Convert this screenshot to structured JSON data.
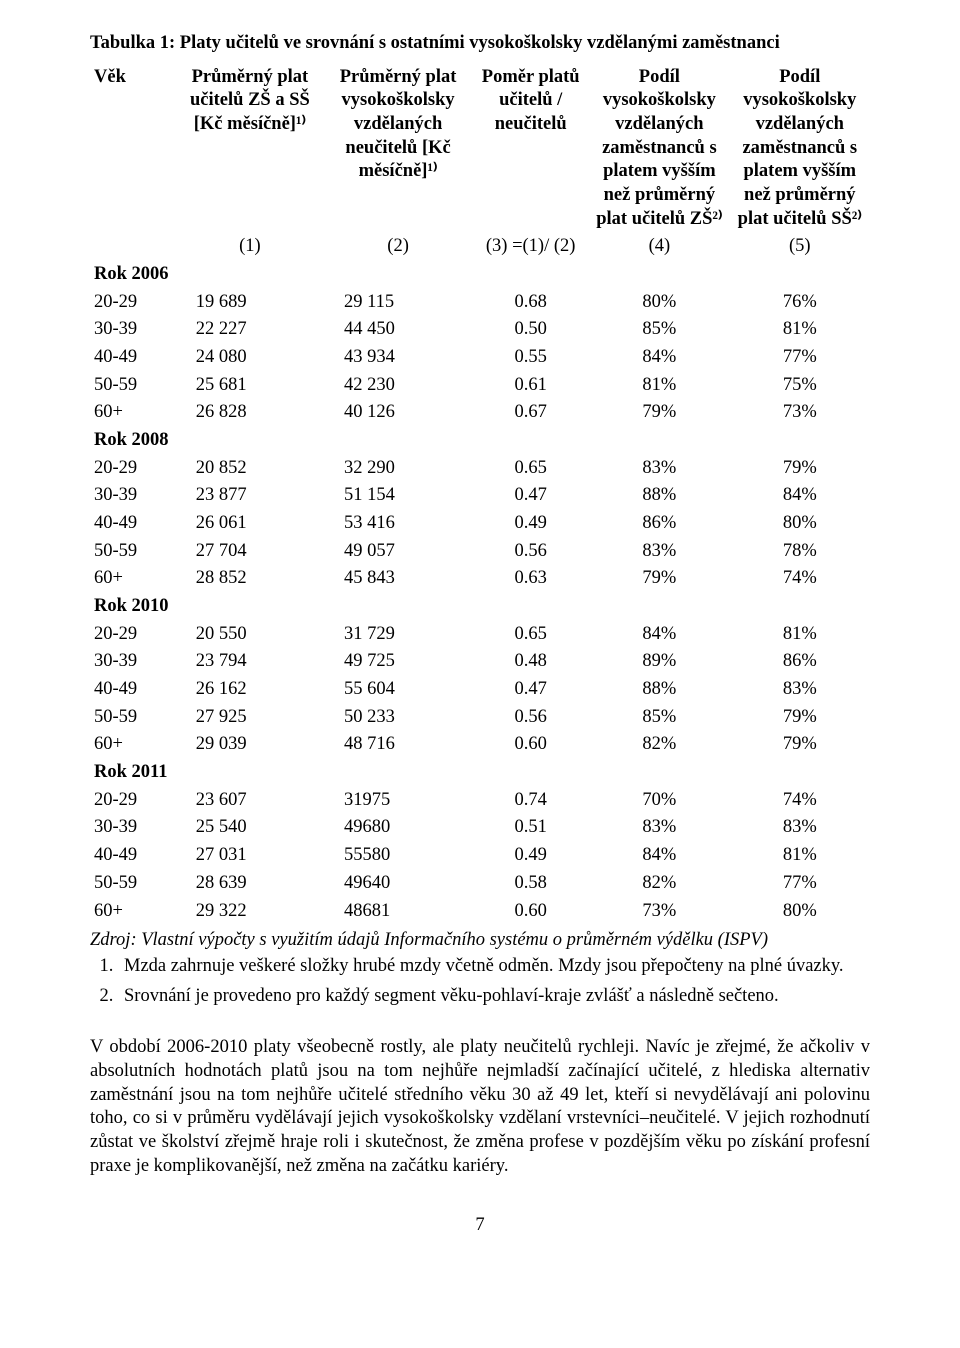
{
  "title": "Tabulka 1: Platy učitelů ve srovnání s ostatními vysokoškolsky vzdělanými zaměstnanci",
  "colors": {
    "text": "#000000",
    "background": "#ffffff"
  },
  "typography": {
    "body_font": "Georgia, serif",
    "body_size_pt": 14,
    "title_weight": "bold"
  },
  "columns": [
    "Věk",
    "Průměrný plat učitelů ZŠ a SŠ [Kč měsíčně]¹⁾",
    "Průměrný plat vysokoškolsky vzdělaných neučitelů [Kč měsíčně]¹⁾",
    "Poměr platů učitelů / neučitelů",
    "Podíl vysokoškolsky vzdělaných zaměstnanců s platem vyšším než průměrný plat učitelů ZŠ²⁾",
    "Podíl vysokoškolsky vzdělaných zaměstnanců s platem vyšším než průměrný plat učitelů SŠ²⁾"
  ],
  "col_numbers": [
    "",
    "(1)",
    "(2)",
    "(3) =(1)/ (2)",
    "(4)",
    "(5)"
  ],
  "sections": [
    {
      "label": "Rok 2006",
      "rows": [
        {
          "age": "20-29",
          "v1": "19 689",
          "v2": "29 115",
          "v3": "0.68",
          "v4": "80%",
          "v5": "76%"
        },
        {
          "age": "30-39",
          "v1": "22 227",
          "v2": "44 450",
          "v3": "0.50",
          "v4": "85%",
          "v5": "81%"
        },
        {
          "age": "40-49",
          "v1": "24 080",
          "v2": "43 934",
          "v3": "0.55",
          "v4": "84%",
          "v5": "77%"
        },
        {
          "age": "50-59",
          "v1": "25 681",
          "v2": "42 230",
          "v3": "0.61",
          "v4": "81%",
          "v5": "75%"
        },
        {
          "age": "60+",
          "v1": "26 828",
          "v2": "40 126",
          "v3": "0.67",
          "v4": "79%",
          "v5": "73%"
        }
      ]
    },
    {
      "label": "Rok 2008",
      "rows": [
        {
          "age": "20-29",
          "v1": "20 852",
          "v2": "32 290",
          "v3": "0.65",
          "v4": "83%",
          "v5": "79%"
        },
        {
          "age": "30-39",
          "v1": "23 877",
          "v2": "51 154",
          "v3": "0.47",
          "v4": "88%",
          "v5": "84%"
        },
        {
          "age": "40-49",
          "v1": "26 061",
          "v2": "53 416",
          "v3": "0.49",
          "v4": "86%",
          "v5": "80%"
        },
        {
          "age": "50-59",
          "v1": "27 704",
          "v2": "49 057",
          "v3": "0.56",
          "v4": "83%",
          "v5": "78%"
        },
        {
          "age": "60+",
          "v1": "28 852",
          "v2": "45 843",
          "v3": "0.63",
          "v4": "79%",
          "v5": "74%"
        }
      ]
    },
    {
      "label": "Rok 2010",
      "rows": [
        {
          "age": "20-29",
          "v1": "20 550",
          "v2": "31 729",
          "v3": "0.65",
          "v4": "84%",
          "v5": "81%"
        },
        {
          "age": "30-39",
          "v1": "23 794",
          "v2": "49 725",
          "v3": "0.48",
          "v4": "89%",
          "v5": "86%"
        },
        {
          "age": "40-49",
          "v1": "26 162",
          "v2": "55 604",
          "v3": "0.47",
          "v4": "88%",
          "v5": "83%"
        },
        {
          "age": "50-59",
          "v1": "27 925",
          "v2": "50 233",
          "v3": "0.56",
          "v4": "85%",
          "v5": "79%"
        },
        {
          "age": "60+",
          "v1": "29 039",
          "v2": "48 716",
          "v3": "0.60",
          "v4": "82%",
          "v5": "79%"
        }
      ]
    },
    {
      "label": "Rok 2011",
      "rows": [
        {
          "age": "20-29",
          "v1": "23 607",
          "v2": "31975",
          "v3": "0.74",
          "v4": "70%",
          "v5": "74%"
        },
        {
          "age": "30-39",
          "v1": "25 540",
          "v2": "49680",
          "v3": "0.51",
          "v4": "83%",
          "v5": "83%"
        },
        {
          "age": "40-49",
          "v1": "27 031",
          "v2": "55580",
          "v3": "0.49",
          "v4": "84%",
          "v5": "81%"
        },
        {
          "age": "50-59",
          "v1": "28 639",
          "v2": "49640",
          "v3": "0.58",
          "v4": "82%",
          "v5": "77%"
        },
        {
          "age": "60+",
          "v1": "29 322",
          "v2": "48681",
          "v3": "0.60",
          "v4": "73%",
          "v5": "80%"
        }
      ]
    }
  ],
  "source": "Zdroj: Vlastní výpočty s využitím údajů Informačního systému o průměrném výdělku (ISPV)",
  "footnotes": [
    "Mzda zahrnuje veškeré složky hrubé mzdy včetně odměn. Mzdy jsou přepočteny na plné úvazky.",
    "Srovnání je provedeno pro každý segment věku-pohlaví-kraje zvlášť a následně sečteno."
  ],
  "paragraph": "V období 2006-2010 platy všeobecně rostly, ale platy neučitelů rychleji. Navíc je zřejmé, že ačkoliv v absolutních hodnotách platů jsou na tom nejhůře nejmladší začínající učitelé, z hlediska alternativ zaměstnání jsou na tom nejhůře učitelé středního věku 30 až 49 let, kteří si nevydělávají ani polovinu toho, co si v průměru vydělávají jejich vysokoškolsky vzdělaní vrstevníci–neučitelé. V jejich rozhodnutí zůstat ve školství zřejmě hraje roli i skutečnost, že změna profese v pozdějším věku po získání profesní praxe je komplikovanější, než změna na začátku kariéry.",
  "page_number": "7"
}
